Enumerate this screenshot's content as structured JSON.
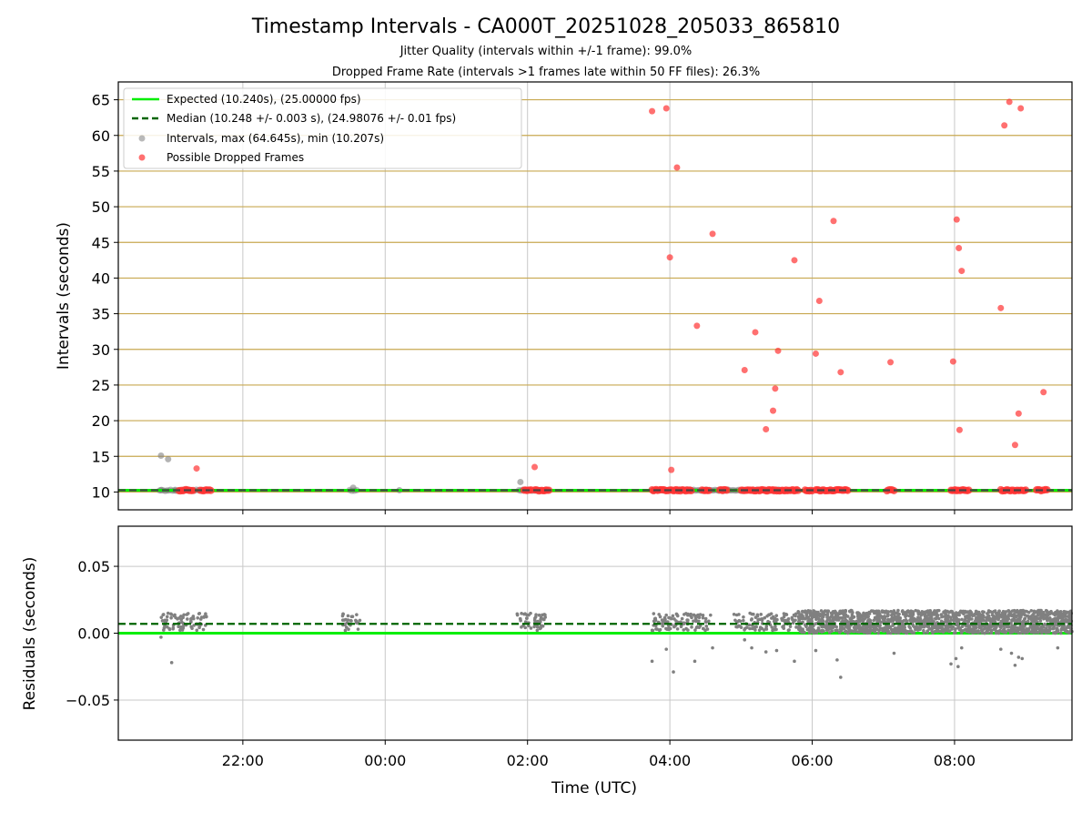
{
  "chart_data": {
    "title": "Timestamp Intervals - CA000T_20251028_205033_865810",
    "subtitle_jitter": "Jitter Quality (intervals within +/-1 frame): 99.0%",
    "subtitle_dropped": "Dropped Frame Rate (intervals >1 frames late within 50 FF files): 26.3%",
    "colors": {
      "expected": "#00ee00",
      "median": "#006400",
      "intervals": "#808080",
      "dropped": "#ff3333",
      "upper_grid": "#c8a850",
      "lower_grid": "#c8c8c8"
    },
    "upper": {
      "type": "scatter",
      "ylabel": "Intervals (seconds)",
      "ylim": [
        7.5,
        67.5
      ],
      "yticks": [
        10,
        15,
        20,
        25,
        30,
        35,
        40,
        45,
        50,
        55,
        60,
        65
      ],
      "ytick_labels": [
        "10",
        "15",
        "20",
        "25",
        "30",
        "35",
        "40",
        "45",
        "50",
        "55",
        "60",
        "65"
      ],
      "expected": 10.24,
      "median": 10.248,
      "legend": {
        "location": "top-left",
        "entries": [
          "Expected (10.240s), (25.00000 fps)",
          "Median (10.248 +/- 0.003 s), (24.98076 +/- 0.01 fps)",
          "Intervals, max (64.645s), min (10.207s)",
          "Possible Dropped Frames"
        ]
      },
      "intervals_points": [
        [
          20.85,
          15.1
        ],
        [
          20.95,
          14.6
        ],
        [
          23.55,
          10.6
        ],
        [
          25.9,
          11.4
        ],
        [
          20.85,
          10.25
        ],
        [
          21.05,
          10.3
        ],
        [
          24.2,
          10.25
        ],
        [
          25.95,
          10.3
        ]
      ],
      "intervals_band": [
        [
          20.83,
          21.45
        ],
        [
          23.5,
          23.6
        ],
        [
          25.88,
          26.25
        ],
        [
          27.75,
          29.6
        ]
      ],
      "dropped_points": [
        [
          21.35,
          13.3
        ],
        [
          26.1,
          13.5
        ],
        [
          27.75,
          63.4
        ],
        [
          27.95,
          63.8
        ],
        [
          28.0,
          42.9
        ],
        [
          28.02,
          13.1
        ],
        [
          28.1,
          55.5
        ],
        [
          28.38,
          33.3
        ],
        [
          28.6,
          46.2
        ],
        [
          29.05,
          27.1
        ],
        [
          29.2,
          32.4
        ],
        [
          29.35,
          18.8
        ],
        [
          29.45,
          21.4
        ],
        [
          29.48,
          24.5
        ],
        [
          29.52,
          29.8
        ],
        [
          29.75,
          42.5
        ],
        [
          30.05,
          29.4
        ],
        [
          30.1,
          36.8
        ],
        [
          30.3,
          48.0
        ],
        [
          30.4,
          26.8
        ],
        [
          31.1,
          28.2
        ],
        [
          31.98,
          28.3
        ],
        [
          32.03,
          48.2
        ],
        [
          32.06,
          44.2
        ],
        [
          32.07,
          18.7
        ],
        [
          32.1,
          41.0
        ],
        [
          32.65,
          35.8
        ],
        [
          32.7,
          61.4
        ],
        [
          32.77,
          64.7
        ],
        [
          32.85,
          16.6
        ],
        [
          32.9,
          21.0
        ],
        [
          32.93,
          63.8
        ],
        [
          33.25,
          24.0
        ]
      ],
      "dropped_band_segments": [
        [
          21.1,
          21.3
        ],
        [
          21.4,
          21.55
        ],
        [
          25.95,
          26.05
        ],
        [
          26.1,
          26.3
        ],
        [
          27.75,
          28.3
        ],
        [
          28.45,
          28.55
        ],
        [
          28.7,
          28.8
        ],
        [
          29.0,
          29.8
        ],
        [
          29.9,
          30.0
        ],
        [
          30.05,
          30.5
        ],
        [
          31.05,
          31.15
        ],
        [
          31.95,
          32.2
        ],
        [
          32.65,
          33.0
        ],
        [
          33.15,
          33.3
        ]
      ]
    },
    "lower": {
      "type": "scatter",
      "ylabel": "Residuals (seconds)",
      "ylim": [
        -0.08,
        0.08
      ],
      "yticks": [
        -0.05,
        0.0,
        0.05
      ],
      "ytick_labels": [
        "−0.05",
        "0.00",
        "0.05"
      ],
      "expected_residual": 0.0,
      "median_residual": 0.007,
      "clusters": [
        [
          20.85,
          21.5
        ],
        [
          23.4,
          23.65
        ],
        [
          25.85,
          26.25
        ],
        [
          27.75,
          28.6
        ],
        [
          28.9,
          29.8
        ],
        [
          29.8,
          33.65
        ]
      ],
      "outliers": [
        [
          20.85,
          -0.003
        ],
        [
          21.0,
          -0.022
        ],
        [
          27.75,
          -0.021
        ],
        [
          27.95,
          -0.012
        ],
        [
          28.05,
          -0.029
        ],
        [
          28.35,
          -0.021
        ],
        [
          28.6,
          -0.011
        ],
        [
          29.05,
          -0.005
        ],
        [
          29.15,
          -0.011
        ],
        [
          29.35,
          -0.014
        ],
        [
          29.5,
          -0.013
        ],
        [
          29.75,
          -0.021
        ],
        [
          30.05,
          -0.013
        ],
        [
          30.35,
          -0.02
        ],
        [
          30.4,
          -0.033
        ],
        [
          31.15,
          -0.015
        ],
        [
          31.95,
          -0.023
        ],
        [
          32.02,
          -0.019
        ],
        [
          32.05,
          -0.025
        ],
        [
          32.1,
          -0.011
        ],
        [
          32.65,
          -0.012
        ],
        [
          32.8,
          -0.015
        ],
        [
          32.85,
          -0.024
        ],
        [
          32.9,
          -0.018
        ],
        [
          32.95,
          -0.019
        ],
        [
          33.45,
          -0.011
        ]
      ]
    },
    "x": {
      "xlabel": "Time (UTC)",
      "xlim": [
        20.25,
        33.65
      ],
      "ticks": [
        22,
        24,
        26,
        28,
        30,
        32
      ],
      "tick_labels": [
        "22:00",
        "00:00",
        "02:00",
        "04:00",
        "06:00",
        "08:00"
      ]
    }
  }
}
